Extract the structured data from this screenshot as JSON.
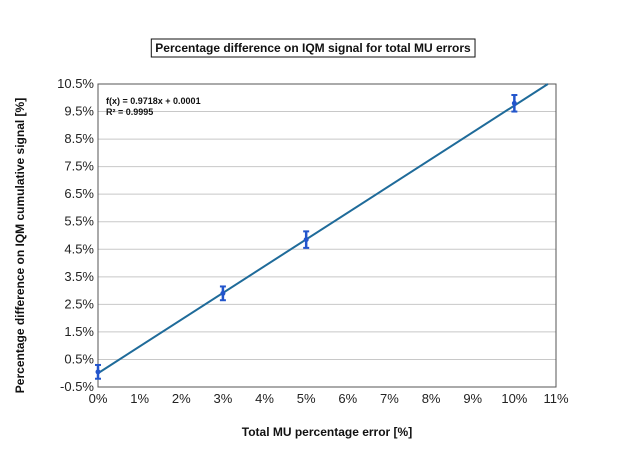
{
  "chart_data": {
    "type": "scatter",
    "title": "Percentage difference on IQM signal for total MU errors",
    "xlabel": "Total MU percentage error [%]",
    "ylabel": "Percentage difference on IQM cumulative signal [%]",
    "xlim": [
      0,
      11
    ],
    "ylim": [
      -0.5,
      10.5
    ],
    "x_ticks": [
      "0%",
      "1%",
      "2%",
      "3%",
      "4%",
      "5%",
      "6%",
      "7%",
      "8%",
      "9%",
      "10%",
      "11%"
    ],
    "y_ticks": [
      "-0.5%",
      "0.5%",
      "1.5%",
      "2.5%",
      "3.5%",
      "4.5%",
      "5.5%",
      "6.5%",
      "7.5%",
      "8.5%",
      "9.5%",
      "10.5%"
    ],
    "grid": "horizontal",
    "series": [
      {
        "x": [
          0,
          3,
          5,
          10
        ],
        "y": [
          0.05,
          2.9,
          4.85,
          9.8
        ],
        "error": [
          0.25,
          0.25,
          0.3,
          0.3
        ],
        "color": "#2255cc"
      }
    ],
    "trendline": {
      "slope": 0.9718,
      "intercept": 0.0001,
      "color": "#1f6b9a",
      "equation": "f(x) = 0.9718x + 0.0001",
      "r_squared": "R² = 0.9995"
    }
  }
}
